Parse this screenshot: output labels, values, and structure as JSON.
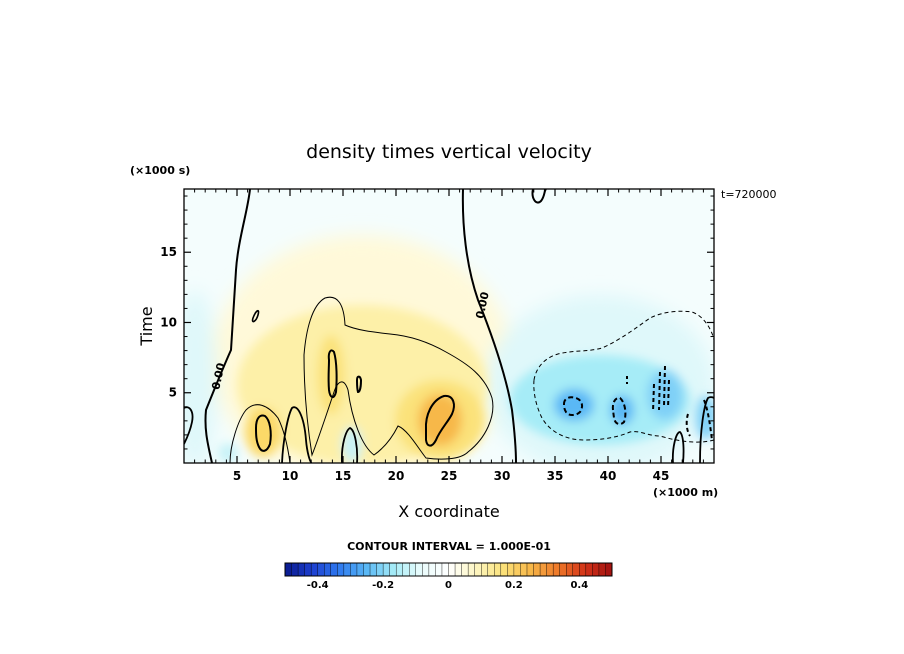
{
  "chart_data": {
    "type": "heatmap",
    "title": "density times vertical velocity",
    "xlabel": "X coordinate",
    "ylabel": "Time",
    "x_unit": "(×1000 m)",
    "y_unit": "(×1000 s)",
    "time_stamp": "t=720000",
    "contour_interval_label": "CONTOUR INTERVAL = 1.000E-01",
    "contour_label": "0.00",
    "xlim": [
      0,
      50
    ],
    "ylim": [
      0,
      19.5
    ],
    "x_ticks": [
      "5",
      "10",
      "15",
      "20",
      "25",
      "30",
      "35",
      "40",
      "45"
    ],
    "x_tick_values": [
      5,
      10,
      15,
      20,
      25,
      30,
      35,
      40,
      45
    ],
    "y_ticks": [
      "5",
      "10",
      "15"
    ],
    "y_tick_values": [
      5,
      10,
      15
    ],
    "colorbar": {
      "range": [
        -0.5,
        0.5
      ],
      "tick_labels": [
        "-0.4",
        "-0.2",
        "0",
        "0.2",
        "0.4"
      ],
      "tick_values": [
        -0.4,
        -0.2,
        0,
        0.2,
        0.4
      ],
      "colors": [
        "#0a1a8c",
        "#1d3fd0",
        "#2f7bf0",
        "#5ab8f5",
        "#a6ecf7",
        "#eafcfc",
        "#ffffff",
        "#fdf6c2",
        "#fbe27a",
        "#f7b84a",
        "#ef7a2a",
        "#d33318",
        "#a01010"
      ]
    },
    "features": [
      {
        "sign": "positive",
        "x": 7.5,
        "y": 2.5,
        "peak": 0.2
      },
      {
        "sign": "positive",
        "x": 13.8,
        "y": 6.5,
        "peak": 0.15
      },
      {
        "sign": "positive",
        "x": 24,
        "y": 3.0,
        "peak": 0.25
      },
      {
        "sign": "negative",
        "x": 37,
        "y": 4.0,
        "peak": -0.15
      },
      {
        "sign": "negative",
        "x": 41,
        "y": 3.8,
        "peak": -0.18
      },
      {
        "sign": "negative",
        "x": 44.5,
        "y": 5.0,
        "peak": -0.15
      }
    ]
  }
}
